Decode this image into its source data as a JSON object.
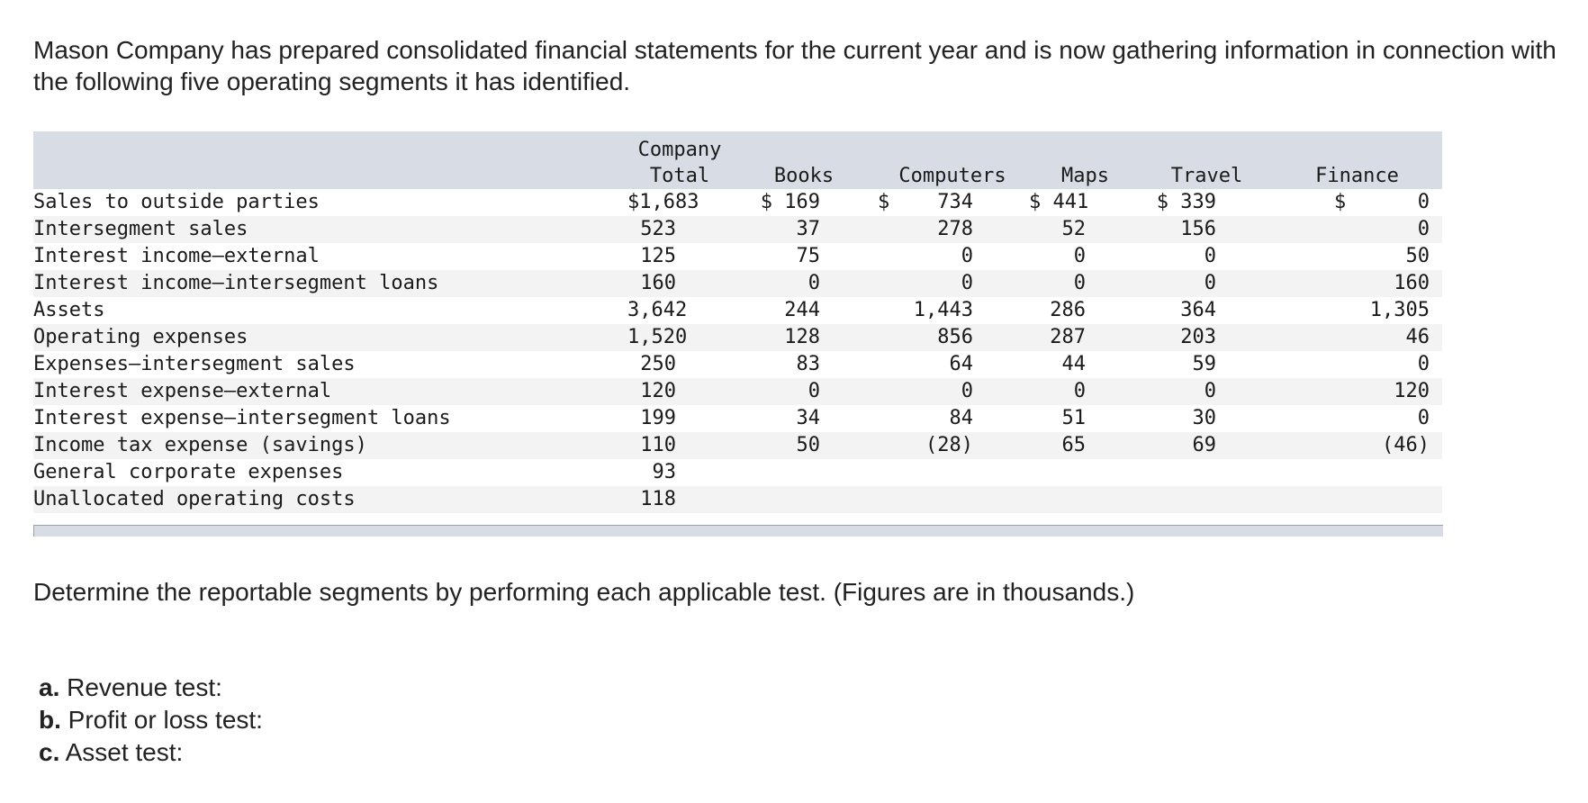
{
  "intro": "Mason Company has prepared consolidated financial statements for the current year and is now gathering information in connection with the following five operating segments it has identified.",
  "table": {
    "headers": [
      "",
      "Company\nTotal",
      "Books",
      "Computers",
      "Maps",
      "Travel",
      "Finance"
    ],
    "rows": [
      {
        "label": "Sales to outside parties",
        "cells": [
          "$1,683",
          "$ 169",
          "$    734",
          "$ 441",
          "$ 339",
          "$      0"
        ]
      },
      {
        "label": "Intersegment sales",
        "cells": [
          "523",
          "37",
          "278",
          "52",
          "156",
          "0"
        ]
      },
      {
        "label": "Interest income—external",
        "cells": [
          "125",
          "75",
          "0",
          "0",
          "0",
          "50"
        ]
      },
      {
        "label": "Interest income—intersegment loans",
        "cells": [
          "160",
          "0",
          "0",
          "0",
          "0",
          "160"
        ]
      },
      {
        "label": "Assets",
        "cells": [
          "3,642",
          "244",
          "1,443",
          "286",
          "364",
          "1,305"
        ]
      },
      {
        "label": "Operating expenses",
        "cells": [
          "1,520",
          "128",
          "856",
          "287",
          "203",
          "46"
        ]
      },
      {
        "label": "Expenses—intersegment sales",
        "cells": [
          "250",
          "83",
          "64",
          "44",
          "59",
          "0"
        ]
      },
      {
        "label": "Interest expense—external",
        "cells": [
          "120",
          "0",
          "0",
          "0",
          "0",
          "120"
        ]
      },
      {
        "label": "Interest expense—intersegment loans",
        "cells": [
          "199",
          "34",
          "84",
          "51",
          "30",
          "0"
        ]
      },
      {
        "label": "Income tax expense (savings)",
        "cells": [
          "110",
          "50",
          "(28)",
          "65",
          "69",
          "(46)"
        ]
      },
      {
        "label": "General corporate expenses",
        "cells": [
          "93",
          "",
          "",
          "",
          "",
          ""
        ]
      },
      {
        "label": "Unallocated operating costs",
        "cells": [
          "118",
          "",
          "",
          "",
          "",
          ""
        ]
      }
    ]
  },
  "instruction": "Determine the reportable segments by performing each applicable test. (Figures are in thousands.)",
  "tests": [
    {
      "letter": "a.",
      "text": " Revenue test:"
    },
    {
      "letter": "b.",
      "text": " Profit or loss test:"
    },
    {
      "letter": "c.",
      "text": " Asset test:"
    }
  ]
}
